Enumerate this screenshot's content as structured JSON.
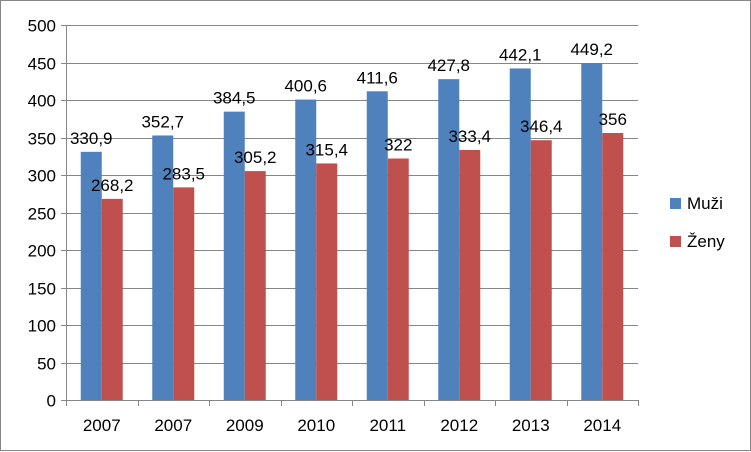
{
  "chart_data": {
    "type": "bar",
    "categories": [
      "2007",
      "2007",
      "2009",
      "2010",
      "2011",
      "2012",
      "2013",
      "2014"
    ],
    "series": [
      {
        "name": "Muži",
        "color": "#4F81BD",
        "values": [
          330.9,
          352.7,
          384.5,
          400.6,
          411.6,
          427.8,
          442.1,
          449.2
        ],
        "labels": [
          "330,9",
          "352,7",
          "384,5",
          "400,6",
          "411,6",
          "427,8",
          "442,1",
          "449,2"
        ]
      },
      {
        "name": "Ženy",
        "color": "#C0504D",
        "values": [
          268.2,
          283.5,
          305.2,
          315.4,
          322,
          333.4,
          346.4,
          356
        ],
        "labels": [
          "268,2",
          "283,5",
          "305,2",
          "315,4",
          "322",
          "333,4",
          "346,4",
          "356"
        ]
      }
    ],
    "ylim": [
      0,
      500
    ],
    "yticks": [
      0,
      50,
      100,
      150,
      200,
      250,
      300,
      350,
      400,
      450,
      500
    ],
    "grid": true,
    "legend": "right"
  }
}
